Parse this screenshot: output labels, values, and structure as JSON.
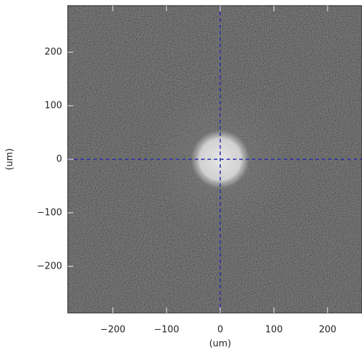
{
  "chart_data": {
    "type": "image",
    "xlabel": "(um)",
    "ylabel": "(um)",
    "xlim": [
      -284,
      264
    ],
    "ylim": [
      -287,
      287
    ],
    "xticks": [
      {
        "value": -200,
        "label": "−200"
      },
      {
        "value": -100,
        "label": "−100"
      },
      0,
      100,
      200
    ],
    "yticks": [
      {
        "value": -200,
        "label": "−200"
      },
      {
        "value": -100,
        "label": "−100"
      },
      0,
      100,
      200
    ],
    "spot": {
      "x": 0,
      "y": 0,
      "radius": 50
    },
    "crosshair": {
      "x": 0,
      "y": 0,
      "color": "#2b2bb0"
    }
  }
}
